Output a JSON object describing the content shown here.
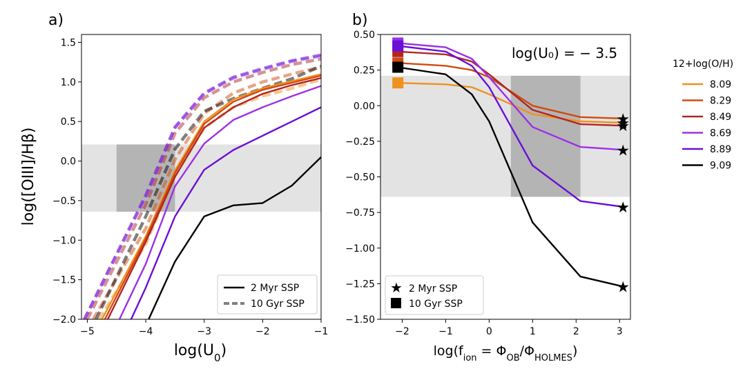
{
  "colors": {
    "8.09": "#f0901e",
    "8.29": "#d04a10",
    "8.49": "#b22424",
    "8.69": "#9b30e6",
    "8.89": "#6a0fd6",
    "9.09": "#000000",
    "band_light": "#e3e3e3",
    "band_dark": "#b4b4b4"
  },
  "legend_metallicity": {
    "title": "12+log(O/H)",
    "entries": [
      "8.09",
      "8.29",
      "8.49",
      "8.69",
      "8.89",
      "9.09"
    ]
  },
  "chart_data": [
    {
      "type": "line",
      "panel_label": "a)",
      "title": "",
      "xlabel": "log(U",
      "xlabel_sub": "0",
      "xlabel_end": ")",
      "ylabel": "log([OIII]/Hβ)",
      "xlim": [
        -5.1,
        -1
      ],
      "ylim": [
        -2.0,
        1.6
      ],
      "xticks": [
        -5,
        -4,
        -3,
        -2,
        -1
      ],
      "xtick_labels": [
        "−5",
        "−4",
        "−3",
        "−2",
        "−1"
      ],
      "yticks": [
        -2.0,
        -1.5,
        -1.0,
        -0.5,
        0.0,
        0.5,
        1.0,
        1.5
      ],
      "ytick_labels": [
        "−2.0",
        "−1.5",
        "−1.0",
        "−0.5",
        "0.0",
        "0.5",
        "1.0",
        "1.5"
      ],
      "bands": {
        "light": {
          "x": [
            -5.1,
            -1
          ],
          "y": [
            -0.64,
            0.21
          ]
        },
        "dark": {
          "x": [
            -4.5,
            -3.5
          ],
          "y": [
            -0.64,
            0.21
          ]
        }
      },
      "series": [
        {
          "name": "8.09",
          "style": "solid",
          "x": [
            -4.75,
            -4.0,
            -3.5,
            -3.0,
            -2.5,
            -2.0,
            -1.5,
            -1.0
          ],
          "y": [
            -2.0,
            -0.95,
            -0.12,
            0.5,
            0.78,
            0.92,
            1.01,
            1.1
          ]
        },
        {
          "name": "8.29",
          "style": "solid",
          "x": [
            -4.7,
            -4.0,
            -3.5,
            -3.0,
            -2.5,
            -2.0,
            -1.5,
            -1.0
          ],
          "y": [
            -2.0,
            -0.98,
            -0.15,
            0.47,
            0.75,
            0.9,
            0.99,
            1.08
          ]
        },
        {
          "name": "8.49",
          "style": "solid",
          "x": [
            -4.65,
            -4.0,
            -3.5,
            -3.0,
            -2.5,
            -2.0,
            -1.5,
            -1.0
          ],
          "y": [
            -2.0,
            -1.02,
            -0.2,
            0.42,
            0.68,
            0.85,
            0.96,
            1.05
          ]
        },
        {
          "name": "8.69",
          "style": "solid",
          "x": [
            -4.45,
            -4.0,
            -3.5,
            -3.0,
            -2.5,
            -2.0,
            -1.5,
            -1.0
          ],
          "y": [
            -2.0,
            -1.3,
            -0.32,
            0.22,
            0.52,
            0.68,
            0.82,
            0.95
          ]
        },
        {
          "name": "8.89",
          "style": "solid",
          "x": [
            -4.25,
            -4.0,
            -3.5,
            -3.0,
            -2.5,
            -2.0,
            -1.5,
            -1.0
          ],
          "y": [
            -2.0,
            -1.6,
            -0.7,
            -0.11,
            0.14,
            0.32,
            0.5,
            0.68
          ]
        },
        {
          "name": "9.09",
          "style": "solid",
          "x": [
            -3.95,
            -3.5,
            -3.0,
            -2.5,
            -2.0,
            -1.5,
            -1.0
          ],
          "y": [
            -2.0,
            -1.27,
            -0.7,
            -0.56,
            -0.53,
            -0.31,
            0.05
          ]
        },
        {
          "name": "8.09",
          "style": "dashed",
          "x": [
            -4.8,
            -4.0,
            -3.5,
            -3.0,
            -2.5,
            -2.0,
            -1.5,
            -1.0
          ],
          "y": [
            -2.0,
            -1.05,
            -0.18,
            0.42,
            0.68,
            0.82,
            0.92,
            1.03
          ]
        },
        {
          "name": "8.29",
          "style": "dashed",
          "x": [
            -4.9,
            -4.0,
            -3.5,
            -3.0,
            -2.5,
            -2.0,
            -1.5,
            -1.0
          ],
          "y": [
            -2.0,
            -0.85,
            0.02,
            0.6,
            0.86,
            1.0,
            1.1,
            1.19
          ]
        },
        {
          "name": "8.49",
          "style": "dashed",
          "x": [
            -5.0,
            -4.0,
            -3.5,
            -3.0,
            -2.5,
            -2.0,
            -1.5,
            -1.0
          ],
          "y": [
            -2.0,
            -0.55,
            0.35,
            0.8,
            1.0,
            1.12,
            1.22,
            1.29
          ]
        },
        {
          "name": "8.69",
          "style": "dashed",
          "x": [
            -5.05,
            -4.0,
            -3.5,
            -3.0,
            -2.5,
            -2.0,
            -1.5,
            -1.0
          ],
          "y": [
            -2.0,
            -0.45,
            0.42,
            0.85,
            1.05,
            1.16,
            1.26,
            1.33
          ]
        },
        {
          "name": "8.89",
          "style": "dashed",
          "x": [
            -5.05,
            -4.0,
            -3.5,
            -3.0,
            -2.5,
            -2.0,
            -1.5,
            -1.0
          ],
          "y": [
            -2.0,
            -0.43,
            0.43,
            0.86,
            1.06,
            1.17,
            1.27,
            1.34
          ]
        },
        {
          "name": "9.09",
          "style": "dashed",
          "x": [
            -4.85,
            -4.0,
            -3.5,
            -3.0,
            -2.5,
            -2.0,
            -1.5,
            -1.0
          ],
          "y": [
            -2.0,
            -0.7,
            0.15,
            0.63,
            0.79,
            0.92,
            1.04,
            1.2
          ]
        }
      ],
      "legend": {
        "placement": "lower-right",
        "entries": [
          {
            "label": "2 Myr SSP",
            "style": "solid"
          },
          {
            "label": "10 Gyr SSP",
            "style": "dashed"
          }
        ]
      }
    },
    {
      "type": "line",
      "panel_label": "b)",
      "title": "",
      "annotation": "log(U₀) = − 3.5",
      "xlabel": "log(f",
      "xlabel_sub": "ion",
      "xlabel_mid": " = Φ",
      "xlabel_sub2": "OB",
      "xlabel_mid2": "/Φ",
      "xlabel_sub3": "HOLMES",
      "xlabel_end": ")",
      "ylabel": "",
      "xlim": [
        -2.5,
        3.25
      ],
      "ylim": [
        -1.5,
        0.5
      ],
      "xticks": [
        -2,
        -1,
        0,
        1,
        2,
        3
      ],
      "xtick_labels": [
        "−2",
        "−1",
        "0",
        "1",
        "2",
        "3"
      ],
      "yticks": [
        -1.5,
        -1.25,
        -1.0,
        -0.75,
        -0.5,
        -0.25,
        0.0,
        0.25,
        0.5
      ],
      "ytick_labels": [
        "−1.50",
        "−1.25",
        "−1.00",
        "−0.75",
        "−0.50",
        "−0.25",
        "0.00",
        "0.25",
        "0.50"
      ],
      "bands": {
        "light": {
          "x": [
            -2.5,
            3.25
          ],
          "y": [
            -0.64,
            0.21
          ]
        },
        "dark": {
          "x": [
            0.5,
            2.1
          ],
          "y": [
            -0.64,
            0.21
          ]
        }
      },
      "series": [
        {
          "name": "8.09",
          "x": [
            -2.1,
            -1.0,
            -0.4,
            0.0,
            1.0,
            2.1,
            3.08
          ],
          "y": [
            0.16,
            0.15,
            0.13,
            0.08,
            -0.06,
            -0.11,
            -0.12
          ]
        },
        {
          "name": "8.29",
          "x": [
            -2.1,
            -1.0,
            -0.4,
            0.0,
            1.0,
            2.1,
            3.08
          ],
          "y": [
            0.3,
            0.28,
            0.25,
            0.2,
            0.0,
            -0.08,
            -0.09
          ]
        },
        {
          "name": "8.49",
          "x": [
            -2.1,
            -1.0,
            -0.4,
            0.0,
            1.0,
            2.1,
            3.08
          ],
          "y": [
            0.38,
            0.36,
            0.31,
            0.22,
            -0.03,
            -0.13,
            -0.14
          ]
        },
        {
          "name": "8.69",
          "x": [
            -2.1,
            -1.0,
            -0.4,
            0.0,
            1.0,
            2.1,
            3.08
          ],
          "y": [
            0.44,
            0.41,
            0.33,
            0.2,
            -0.15,
            -0.29,
            -0.31
          ]
        },
        {
          "name": "8.89",
          "x": [
            -2.1,
            -1.0,
            -0.4,
            0.0,
            1.0,
            2.1,
            3.08
          ],
          "y": [
            0.42,
            0.38,
            0.28,
            0.13,
            -0.42,
            -0.67,
            -0.71
          ]
        },
        {
          "name": "9.09",
          "x": [
            -2.1,
            -1.0,
            -0.4,
            0.0,
            1.0,
            2.1,
            3.08
          ],
          "y": [
            0.27,
            0.22,
            0.08,
            -0.11,
            -0.82,
            -1.2,
            -1.27
          ]
        }
      ],
      "legend": {
        "placement": "lower-left",
        "entries": [
          {
            "label": "2 Myr SSP",
            "marker": "star"
          },
          {
            "label": "10 Gyr SSP",
            "marker": "square"
          }
        ]
      }
    }
  ]
}
